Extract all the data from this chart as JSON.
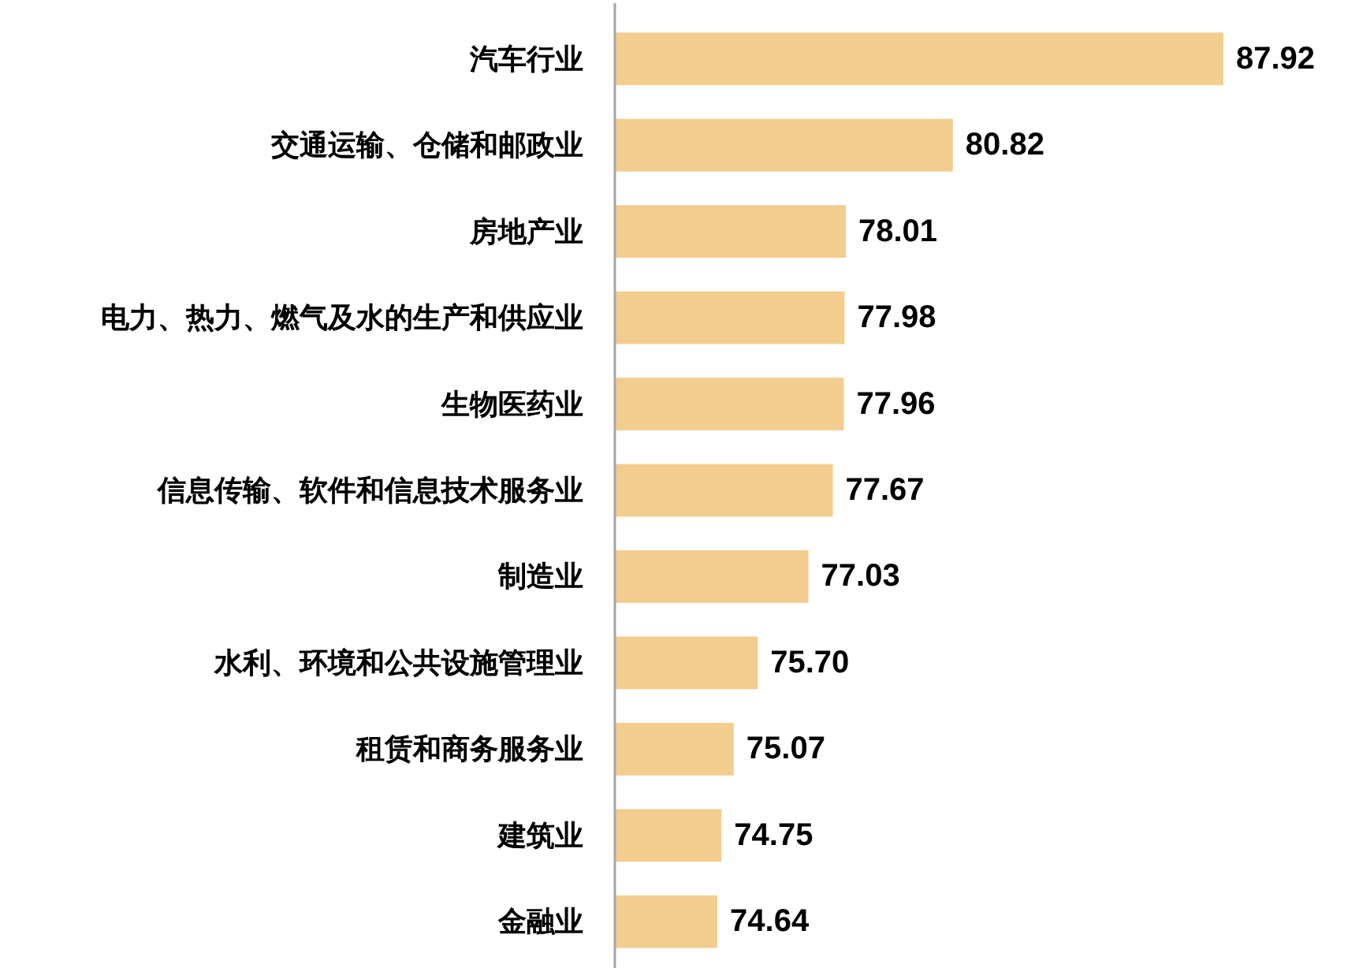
{
  "chart_data": {
    "type": "bar",
    "orientation": "horizontal",
    "categories": [
      "汽车行业",
      "交通运输、仓储和邮政业",
      "房地产业",
      "电力、热力、燃气及水的生产和供应业",
      "生物医药业",
      "信息传输、软件和信息技术服务业",
      "制造业",
      "水利、环境和公共设施管理业",
      "租赁和商务服务业",
      "建筑业",
      "金融业"
    ],
    "values": [
      87.92,
      80.82,
      78.01,
      77.98,
      77.96,
      77.67,
      77.03,
      75.7,
      75.07,
      74.75,
      74.64
    ],
    "value_labels": [
      "87.92",
      "80.82",
      "78.01",
      "77.98",
      "77.96",
      "77.67",
      "77.03",
      "75.70",
      "75.07",
      "74.75",
      "74.64"
    ],
    "color": "#f3cd8e",
    "xlim": [
      71.95,
      87.92
    ]
  }
}
